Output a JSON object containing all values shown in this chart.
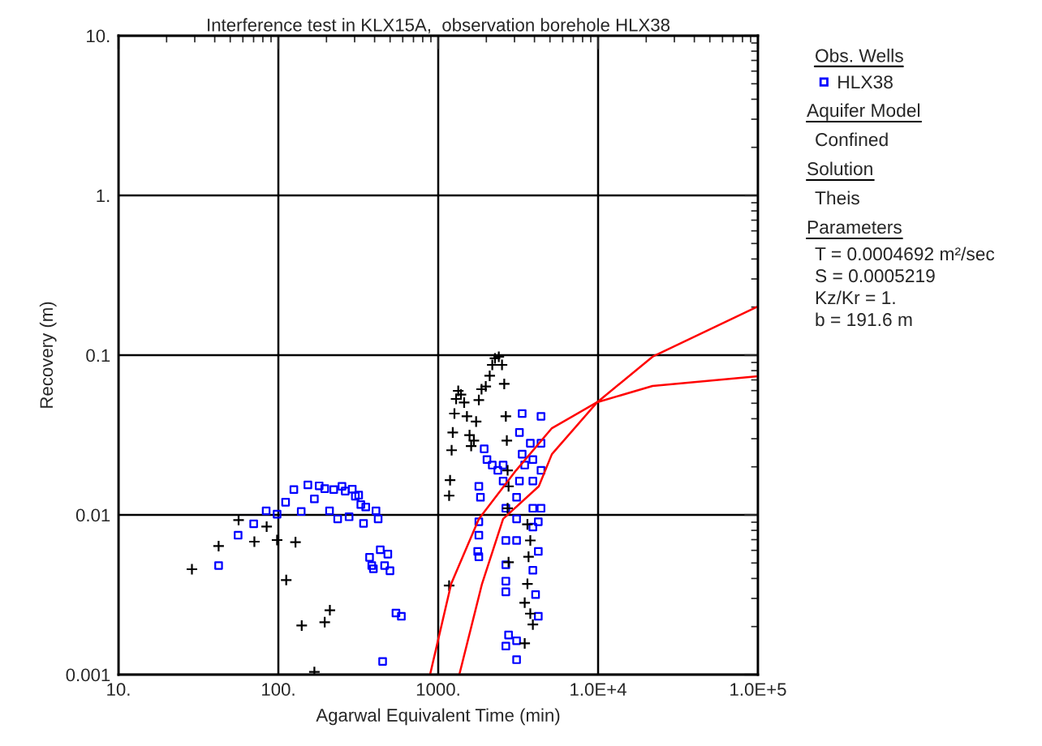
{
  "chart_data": {
    "type": "scatter",
    "title": "Interference test in KLX15A,  observation borehole HLX38",
    "xlabel": "Agarwal Equivalent Time (min)",
    "ylabel": "Recovery (m)",
    "legend_title": "Obs. Wells",
    "legend": "right",
    "log": "xy",
    "grid": true,
    "xlim": [
      10,
      100000
    ],
    "ylim": [
      0.001,
      10
    ],
    "xticks": [
      {
        "value": 10,
        "label": "10."
      },
      {
        "value": 100,
        "label": "100."
      },
      {
        "value": 1000,
        "label": "1000."
      },
      {
        "value": 10000,
        "label": "1.0E+4"
      },
      {
        "value": 100000,
        "label": "1.0E+5"
      }
    ],
    "yticks": [
      {
        "value": 0.001,
        "label": "0.001"
      },
      {
        "value": 0.01,
        "label": "0.01"
      },
      {
        "value": 0.1,
        "label": "0.1"
      },
      {
        "value": 1,
        "label": "1."
      },
      {
        "value": 10,
        "label": "10."
      }
    ],
    "annotations": [
      "Aquifer Model",
      "Confined",
      "Solution",
      "Theis",
      "Parameters",
      "T = 0.0004692 m²/sec",
      "S = 0.0005219",
      "Kz/Kr = 1.",
      "b = 191.6 m"
    ],
    "series": [
      {
        "name": "HLX38",
        "marker": "square",
        "color": "#0000ff",
        "x": [
          42.3,
          56.0,
          70.1,
          83.9,
          98.2,
          111,
          125,
          139,
          153,
          168,
          180,
          195,
          209,
          222,
          235,
          250,
          262,
          277,
          290,
          303,
          318,
          328,
          341,
          352,
          408,
          421,
          372,
          434,
          484,
          384,
          393,
          462,
          499,
          544,
          588,
          449,
          1938,
          2018,
          2178,
          2360,
          2547,
          1795,
          1837,
          1795,
          1795,
          1766,
          1795,
          2547,
          2648,
          2648,
          2648,
          2648,
          2648,
          2754,
          2648,
          3092,
          3092,
          3350,
          3221,
          3350,
          3475,
          3221,
          3092,
          3092,
          3092,
          3767,
          3908,
          3908,
          3908,
          3908,
          4227,
          3908,
          4064,
          4227,
          4395,
          4395,
          4395,
          4395,
          4227
        ],
        "values": [
          0.00482,
          0.00746,
          0.00879,
          0.0106,
          0.0101,
          0.012,
          0.0144,
          0.0105,
          0.0154,
          0.0126,
          0.0152,
          0.0146,
          0.0106,
          0.0144,
          0.00944,
          0.0151,
          0.0141,
          0.00973,
          0.0145,
          0.0131,
          0.0133,
          0.0116,
          0.00885,
          0.0112,
          0.0106,
          0.00944,
          0.00542,
          0.00605,
          0.00568,
          0.00482,
          0.0046,
          0.00482,
          0.00447,
          0.00243,
          0.00232,
          0.00121,
          0.0259,
          0.0222,
          0.0205,
          0.019,
          0.0205,
          0.0151,
          0.0129,
          0.00906,
          0.00746,
          0.00591,
          0.00547,
          0.0163,
          0.011,
          0.00692,
          0.00487,
          0.00385,
          0.0033,
          0.00177,
          0.00151,
          0.00163,
          0.00124,
          0.0431,
          0.0328,
          0.024,
          0.0205,
          0.0163,
          0.0129,
          0.00944,
          0.00692,
          0.0281,
          0.0222,
          0.0163,
          0.011,
          0.00839,
          0.00591,
          0.0045,
          0.00317,
          0.00232,
          0.0414,
          0.0281,
          0.019,
          0.011,
          0.00906
        ]
      },
      {
        "marker": "cross",
        "color": "#000000",
        "x": [
          28.8,
          42.3,
          56.4,
          70.8,
          84.5,
          98.2,
          128,
          112,
          140,
          195,
          210,
          168,
          1170,
          1186,
          1213,
          1233,
          1263,
          1294,
          1334,
          1387,
          1453,
          1512,
          1570,
          1607,
          1671,
          1726,
          1795,
          1866,
          1983,
          2099,
          2178,
          2265,
          2393,
          2506,
          2588,
          2648,
          2686,
          2716,
          2754,
          2716,
          2754,
          1170,
          3614,
          3767,
          3673,
          3614,
          3475,
          3767,
          3908,
          3475
        ],
        "values": [
          0.00457,
          0.00638,
          0.00929,
          0.0068,
          0.00845,
          0.00696,
          0.00675,
          0.00391,
          0.00203,
          0.00213,
          0.00253,
          0.00104,
          0.0132,
          0.0165,
          0.0254,
          0.0328,
          0.0431,
          0.0532,
          0.0598,
          0.0567,
          0.0505,
          0.0414,
          0.0316,
          0.027,
          0.0292,
          0.0384,
          0.0524,
          0.0612,
          0.0637,
          0.0743,
          0.0869,
          0.0955,
          0.0977,
          0.0869,
          0.0661,
          0.0414,
          0.0292,
          0.019,
          0.0151,
          0.011,
          0.00506,
          0.00361,
          0.00873,
          0.00692,
          0.00547,
          0.0037,
          0.00282,
          0.00241,
          0.00206,
          0.00157
        ]
      },
      {
        "type": "line",
        "marker": "none",
        "line_style": "solid",
        "color": "#ff0000",
        "x": [
          889,
          1205,
          1795,
          3069,
          5140,
          9886,
          21900,
          100000
        ],
        "values": [
          0.001,
          0.0037,
          0.00944,
          0.019,
          0.0349,
          0.0508,
          0.0641,
          0.0738
        ]
      },
      {
        "type": "line",
        "marker": "none",
        "line_style": "solid",
        "color": "#ff0000",
        "x": [
          1355,
          1879,
          2547,
          4256,
          5140,
          9886,
          21900,
          100000
        ],
        "values": [
          0.001,
          0.0037,
          0.00944,
          0.0151,
          0.024,
          0.0508,
          0.0977,
          0.202
        ]
      }
    ]
  }
}
